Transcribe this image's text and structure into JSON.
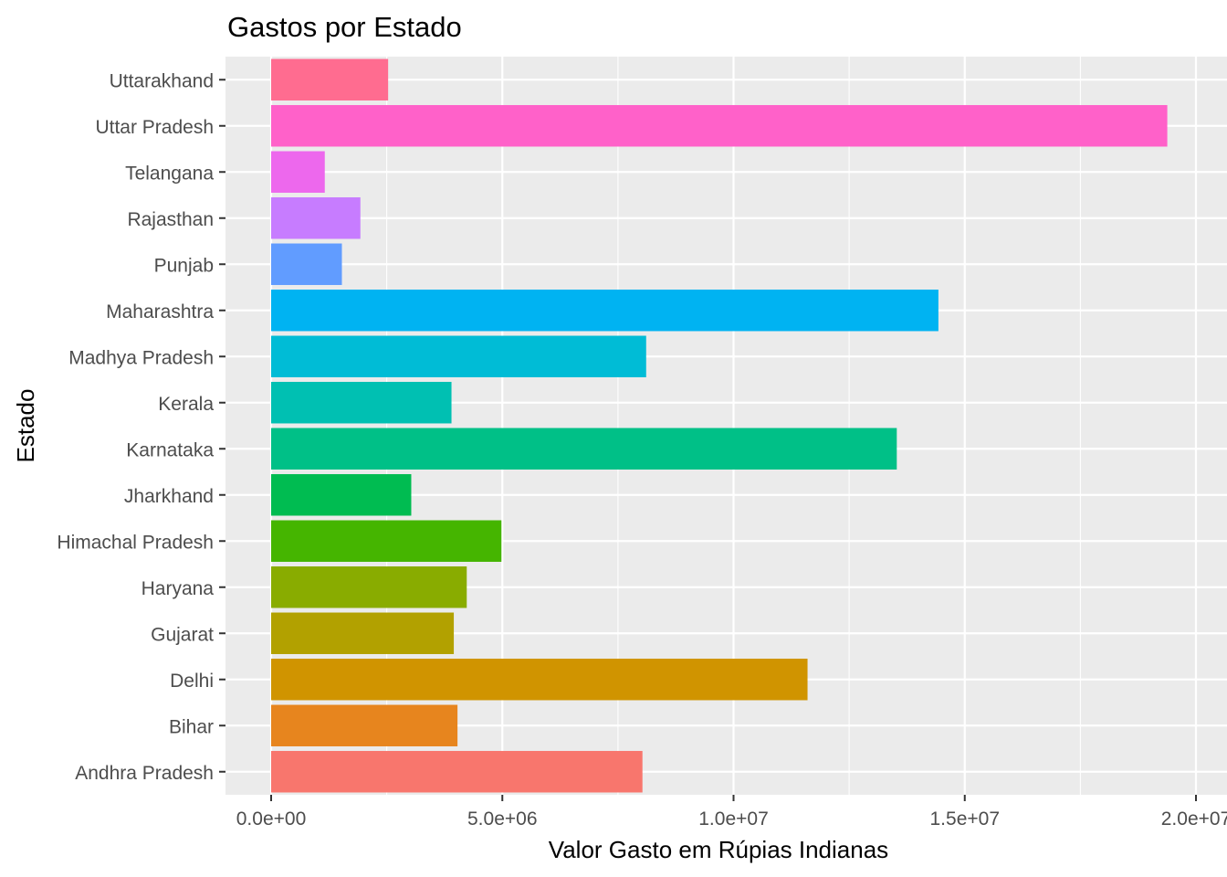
{
  "chart_data": {
    "type": "bar",
    "orientation": "horizontal",
    "title": "Gastos por Estado",
    "xlabel": "Valor Gasto em Rúpias Indianas",
    "ylabel": "Estado",
    "xlim": [
      -950000,
      20350000
    ],
    "xticks": [
      {
        "value": 0,
        "label": "0.0e+00"
      },
      {
        "value": 5000000,
        "label": "5.0e+06"
      },
      {
        "value": 10000000,
        "label": "1.0e+07"
      },
      {
        "value": 15000000,
        "label": "1.5e+07"
      },
      {
        "value": 20000000,
        "label": "2.0e+07"
      }
    ],
    "grid": true,
    "legend": "none",
    "categories": [
      "Andhra Pradesh",
      "Bihar",
      "Delhi",
      "Gujarat",
      "Haryana",
      "Himachal Pradesh",
      "Jharkhand",
      "Karnataka",
      "Kerala",
      "Madhya Pradesh",
      "Maharashtra",
      "Punjab",
      "Rajasthan",
      "Telangana",
      "Uttar Pradesh",
      "Uttarakhand"
    ],
    "values": [
      8030000,
      4030000,
      11600000,
      3950000,
      4230000,
      4980000,
      3030000,
      13530000,
      3900000,
      8110000,
      14430000,
      1530000,
      1930000,
      1160000,
      19380000,
      2530000
    ],
    "colors": [
      "#F8766D",
      "#E7851E",
      "#D09400",
      "#B2A100",
      "#89AC00",
      "#45B500",
      "#00BC51",
      "#00C087",
      "#00C0B2",
      "#00BCD6",
      "#00B3F2",
      "#619CFF",
      "#C77CFF",
      "#ED68ED",
      "#FF61C9",
      "#FF6C90"
    ]
  }
}
